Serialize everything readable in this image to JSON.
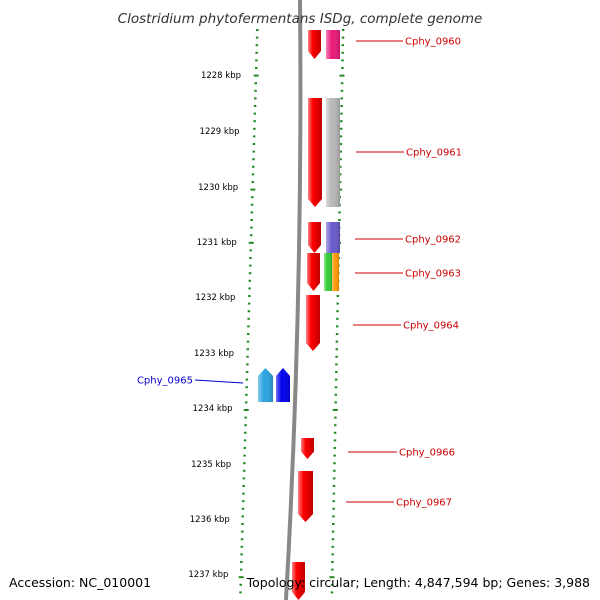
{
  "title": "Clostridium phytofermentans ISDg, complete genome",
  "footer": {
    "accession": "Accession: NC_010001",
    "summary": "Topology: circular; Length: 4,847,594 bp; Genes: 3,988"
  },
  "scale": {
    "start_kbp": 1227.25,
    "end_kbp": 1237.3,
    "ticks": [
      "1228 kbp",
      "1229 kbp",
      "1230 kbp",
      "1231 kbp",
      "1232 kbp",
      "1233 kbp",
      "1234 kbp",
      "1235 kbp",
      "1236 kbp",
      "1237 kbp"
    ]
  },
  "genes": [
    {
      "name": "Cphy_0960",
      "strand": "plus",
      "label_color": "#cc0000",
      "cog_colors": [
        "#e8197a"
      ]
    },
    {
      "name": "Cphy_0961",
      "strand": "plus",
      "label_color": "#cc0000",
      "cog_colors": [
        "#b8b8b8"
      ]
    },
    {
      "name": "Cphy_0962",
      "strand": "plus",
      "label_color": "#cc0000",
      "cog_colors": [
        "#6a5acd"
      ]
    },
    {
      "name": "Cphy_0963",
      "strand": "plus",
      "label_color": "#cc0000",
      "cog_colors": [
        "#33cc33",
        "#ff9900"
      ]
    },
    {
      "name": "Cphy_0964",
      "strand": "plus",
      "label_color": "#cc0000",
      "cog_colors": []
    },
    {
      "name": "Cphy_0965",
      "strand": "minus",
      "label_color": "#0000cc",
      "cog_colors": [
        "#29a3e0",
        "#0000ee"
      ]
    },
    {
      "name": "Cphy_0966",
      "strand": "plus",
      "label_color": "#cc0000",
      "cog_colors": []
    },
    {
      "name": "Cphy_0967",
      "strand": "plus",
      "label_color": "#cc0000",
      "cog_colors": []
    }
  ],
  "colors": {
    "plus_strand": "#ff0000",
    "minus_strand": "#0000ff",
    "backbone": "#888888",
    "ruler_dash": "#228b22",
    "label_line": "#cc0000"
  }
}
